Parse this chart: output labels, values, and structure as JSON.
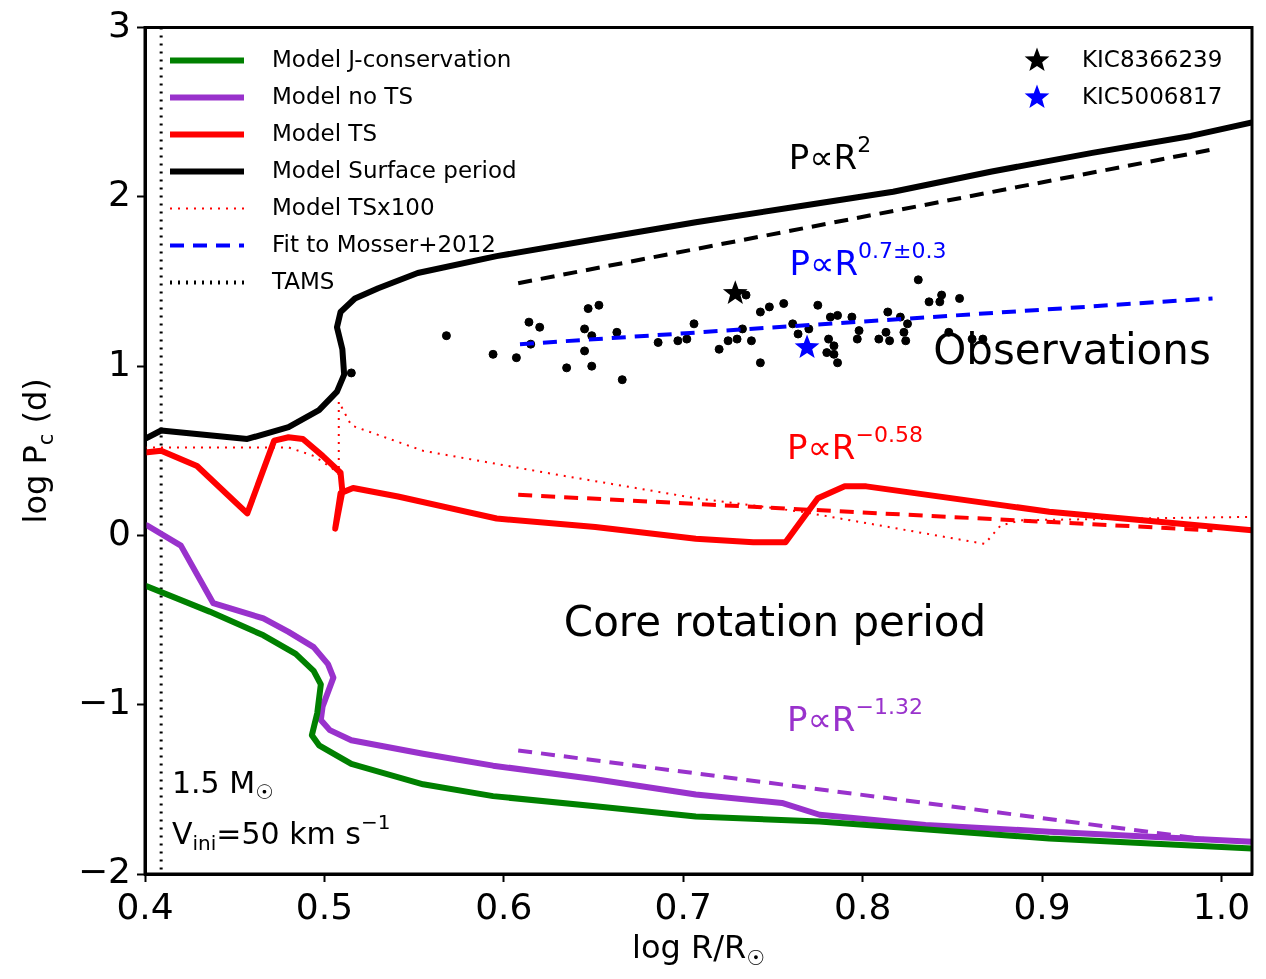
{
  "chart_data": {
    "type": "line",
    "xlabel": "log R/R$_{☉}$",
    "ylabel": "log P$_{c}$ (d)",
    "xlim": [
      0.4,
      1.017
    ],
    "ylim": [
      -2,
      3
    ],
    "xticks": [
      0.4,
      0.5,
      0.6,
      0.7,
      0.8,
      0.9,
      {
        "value": 1.0,
        "label": "1.0"
      }
    ],
    "yticks": [
      {
        "value": -2,
        "label": "−2"
      },
      {
        "value": -1,
        "label": "−1"
      },
      0,
      1,
      2,
      3
    ],
    "legend": "top left",
    "marker": "none",
    "line_style": "solid",
    "ref_lines": [
      {
        "axis": "x",
        "value": 0.409,
        "label": "TAMS",
        "color": "#000000",
        "line_style": "dotted"
      }
    ],
    "series": [
      {
        "name": "Model J-conservation",
        "color": "#008000",
        "x": [
          0.401,
          0.436,
          0.466,
          0.484,
          0.494,
          0.498,
          0.496,
          0.493,
          0.497,
          0.515,
          0.555,
          0.594,
          0.651,
          0.707,
          0.776,
          0.904,
          1.017
        ],
        "values": [
          -0.3,
          -0.45,
          -0.59,
          -0.7,
          -0.8,
          -0.88,
          -1.05,
          -1.18,
          -1.24,
          -1.35,
          -1.47,
          -1.54,
          -1.6,
          -1.66,
          -1.69,
          -1.79,
          -1.85
        ]
      },
      {
        "name": "Model no TS",
        "color": "#9932cc",
        "x": [
          0.401,
          0.42,
          0.438,
          0.466,
          0.48,
          0.494,
          0.502,
          0.505,
          0.499,
          0.498,
          0.503,
          0.515,
          0.555,
          0.594,
          0.651,
          0.707,
          0.755,
          0.776,
          0.835,
          0.904,
          1.017
        ],
        "values": [
          0.06,
          -0.06,
          -0.4,
          -0.49,
          -0.57,
          -0.66,
          -0.76,
          -0.84,
          -1.01,
          -1.09,
          -1.15,
          -1.21,
          -1.29,
          -1.36,
          -1.44,
          -1.53,
          -1.58,
          -1.65,
          -1.71,
          -1.75,
          -1.81
        ]
      },
      {
        "name": "Model TS",
        "color": "#ff0000",
        "x": [
          0.4,
          0.409,
          0.429,
          0.457,
          0.472,
          0.48,
          0.488,
          0.499,
          0.509,
          0.51,
          0.506,
          0.509,
          0.516,
          0.541,
          0.596,
          0.651,
          0.707,
          0.739,
          0.757,
          0.775,
          0.79,
          0.802,
          0.904,
          1.017
        ],
        "values": [
          0.49,
          0.5,
          0.41,
          0.13,
          0.56,
          0.58,
          0.57,
          0.47,
          0.37,
          0.26,
          0.04,
          0.25,
          0.28,
          0.23,
          0.1,
          0.05,
          -0.02,
          -0.04,
          -0.04,
          0.22,
          0.29,
          0.29,
          0.14,
          0.03
        ]
      },
      {
        "name": "Model Surface period",
        "color": "#000000",
        "x": [
          0.4,
          0.409,
          0.457,
          0.48,
          0.497,
          0.507,
          0.511,
          0.51,
          0.507,
          0.509,
          0.517,
          0.53,
          0.552,
          0.596,
          0.651,
          0.707,
          0.762,
          0.817,
          0.872,
          0.928,
          0.983,
          1.017
        ],
        "values": [
          0.57,
          0.62,
          0.57,
          0.64,
          0.74,
          0.85,
          0.95,
          1.1,
          1.23,
          1.32,
          1.4,
          1.46,
          1.55,
          1.65,
          1.75,
          1.85,
          1.94,
          2.03,
          2.15,
          2.26,
          2.36,
          2.44
        ]
      },
      {
        "name": "Model TSx100",
        "color": "#ff0000",
        "line_style": "dotted",
        "x": [
          0.4,
          0.48,
          0.494,
          0.504,
          0.508,
          0.508,
          0.515,
          0.555,
          0.629,
          0.707,
          0.766,
          0.868,
          0.877,
          0.889,
          1.017
        ],
        "values": [
          0.52,
          0.52,
          0.47,
          0.4,
          0.36,
          0.79,
          0.65,
          0.5,
          0.36,
          0.22,
          0.14,
          -0.05,
          0.06,
          0.09,
          0.11
        ]
      },
      {
        "name": "Fit to Mosser+2012",
        "color": "#0000ff",
        "line_style": "dashed",
        "x": [
          0.609,
          0.995
        ],
        "values": [
          1.13,
          1.4
        ]
      },
      {
        "color": "#000000",
        "line_style": "dashed",
        "x": [
          0.608,
          0.995
        ],
        "values": [
          1.49,
          2.28
        ]
      },
      {
        "color": "#ff0000",
        "line_style": "dashed",
        "x": [
          0.608,
          0.995
        ],
        "values": [
          0.24,
          0.03
        ]
      },
      {
        "color": "#9932cc",
        "line_style": "dashed",
        "x": [
          0.608,
          0.995
        ],
        "values": [
          -1.27,
          -1.8
        ]
      },
      {
        "type": "scatter",
        "marker": "circle",
        "color": "#000000",
        "x": [
          0.515,
          0.568,
          0.594,
          0.607,
          0.614,
          0.615,
          0.62,
          0.635,
          0.645,
          0.645,
          0.647,
          0.649,
          0.649,
          0.653,
          0.663,
          0.666,
          0.686,
          0.697,
          0.702,
          0.706,
          0.72,
          0.725,
          0.73,
          0.733,
          0.735,
          0.738,
          0.743,
          0.743,
          0.748,
          0.756,
          0.761,
          0.764,
          0.77,
          0.775,
          0.78,
          0.781,
          0.782,
          0.784,
          0.784,
          0.786,
          0.786,
          0.794,
          0.797,
          0.798,
          0.809,
          0.813,
          0.814,
          0.815,
          0.821,
          0.823,
          0.824,
          0.825,
          0.831,
          0.837,
          0.843,
          0.844,
          0.848,
          0.854,
          0.861,
          0.867
        ],
        "values": [
          0.96,
          1.18,
          1.07,
          1.05,
          1.26,
          1.13,
          1.23,
          0.99,
          1.22,
          1.09,
          1.34,
          1.18,
          1.0,
          1.36,
          1.2,
          0.92,
          1.14,
          1.15,
          1.16,
          1.25,
          1.1,
          1.15,
          1.16,
          1.22,
          1.42,
          1.15,
          1.02,
          1.32,
          1.35,
          1.37,
          1.25,
          1.19,
          1.22,
          1.36,
          1.08,
          1.16,
          1.29,
          1.12,
          1.07,
          1.02,
          1.3,
          1.29,
          1.16,
          1.21,
          1.16,
          1.2,
          1.32,
          1.15,
          1.29,
          1.2,
          1.15,
          1.25,
          1.51,
          1.38,
          1.38,
          1.42,
          1.2,
          1.4,
          1.16,
          1.16
        ]
      },
      {
        "type": "scatter",
        "marker": "star",
        "name": "KIC8366239",
        "color": "#000000",
        "x": [
          0.729
        ],
        "values": [
          1.43
        ]
      },
      {
        "type": "scatter",
        "marker": "star",
        "name": "KIC5006817",
        "color": "#0000ff",
        "x": [
          0.769
        ],
        "values": [
          1.11
        ]
      }
    ],
    "annotations": [
      "P∝R$^{2}$",
      "P∝R$^{0.7±0.3}$",
      "P∝R$^{−0.58}$",
      "P∝R$^{−1.32}$",
      "Observations",
      "Core rotation period",
      "1.5 M$_{☉}$",
      "V$_{ini}$=50 km s$^{−1}$"
    ]
  }
}
